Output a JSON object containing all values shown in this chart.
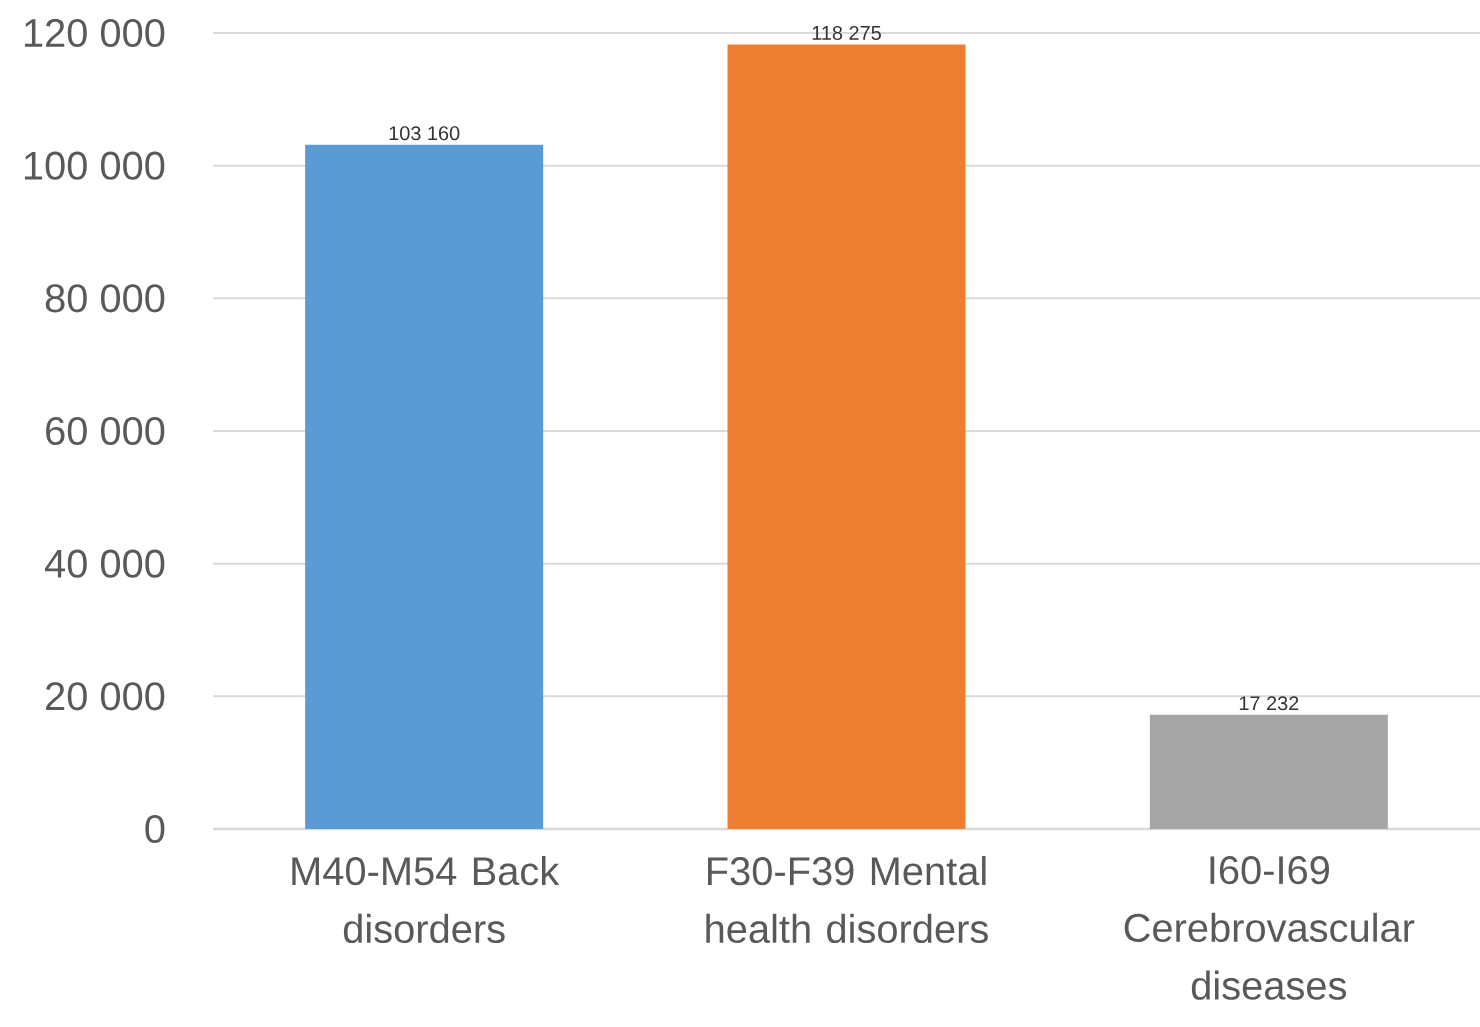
{
  "chart_data": {
    "type": "bar",
    "categories": [
      "M40-M54 Back disorders",
      "F30-F39 Mental health disorders",
      "I60-I69 Cerebrovascular diseases"
    ],
    "values": [
      103160,
      118275,
      17232
    ],
    "colors": [
      "#5b9bd5",
      "#ed7d31",
      "#a5a5a5"
    ],
    "value_labels": [
      "103 160",
      "118 275",
      "17 232"
    ],
    "ylim": [
      0,
      120000
    ],
    "yticks": [
      {
        "value": 0,
        "label": "0"
      },
      {
        "value": 20000,
        "label": "20 000"
      },
      {
        "value": 40000,
        "label": "40 000"
      },
      {
        "value": 60000,
        "label": "60 000"
      },
      {
        "value": 80000,
        "label": "80 000"
      },
      {
        "value": 100000,
        "label": "100 000"
      },
      {
        "value": 120000,
        "label": "120 000"
      }
    ],
    "grid": "y"
  }
}
